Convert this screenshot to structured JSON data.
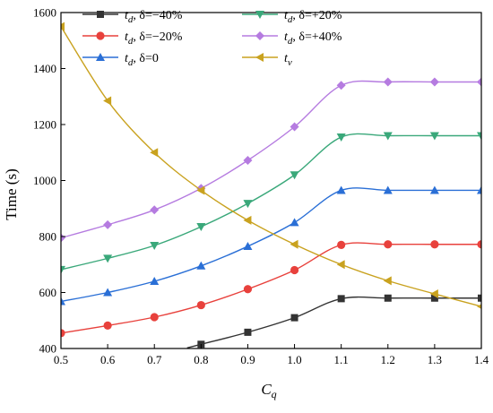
{
  "chart_data": {
    "type": "line",
    "title": "",
    "xlabel": "C",
    "xlabel_sub": "q",
    "ylabel": "Time (s)",
    "xlim": [
      0.5,
      1.4
    ],
    "ylim": [
      400,
      1600
    ],
    "x_ticks": [
      0.5,
      0.6,
      0.7,
      0.8,
      0.9,
      1.0,
      1.1,
      1.2,
      1.3,
      1.4
    ],
    "x_tick_labels": [
      "0.5",
      "0.6",
      "0.7",
      "0.8",
      "0.9",
      "1.0",
      "1.1",
      "1.2",
      "1.3",
      "1.4"
    ],
    "y_ticks": [
      400,
      600,
      800,
      1000,
      1200,
      1400,
      1600
    ],
    "y_tick_labels": [
      "400",
      "600",
      "800",
      "1000",
      "1200",
      "1400",
      "1600"
    ],
    "grid": false,
    "legend_position": "top",
    "x": [
      0.5,
      0.6,
      0.7,
      0.8,
      0.9,
      1.0,
      1.1,
      1.2,
      1.3,
      1.4
    ],
    "series": [
      {
        "name": "t_d, δ=−40%",
        "legend_main": "t",
        "legend_sub": "d",
        "legend_suffix": ", δ=−40%",
        "color": "#333333",
        "marker": "square",
        "x": [
          0.8,
          0.9,
          1.0,
          1.1,
          1.2,
          1.3,
          1.4
        ],
        "values": [
          415,
          458,
          510,
          578,
          580,
          580,
          580
        ],
        "line_from": 0.77
      },
      {
        "name": "t_d, δ=−20%",
        "legend_main": "t",
        "legend_sub": "d",
        "legend_suffix": ", δ=−20%",
        "color": "#e8413c",
        "marker": "circle",
        "x": [
          0.5,
          0.6,
          0.7,
          0.8,
          0.9,
          1.0,
          1.1,
          1.2,
          1.3,
          1.4
        ],
        "values": [
          455,
          482,
          512,
          555,
          612,
          680,
          770,
          772,
          772,
          772
        ]
      },
      {
        "name": "t_d, δ=0",
        "legend_main": "t",
        "legend_sub": "d",
        "legend_suffix": ", δ=0",
        "color": "#2a6fd6",
        "marker": "triangle-up",
        "x": [
          0.5,
          0.6,
          0.7,
          0.8,
          0.9,
          1.0,
          1.1,
          1.2,
          1.3,
          1.4
        ],
        "values": [
          568,
          600,
          640,
          695,
          765,
          850,
          965,
          965,
          965,
          965
        ]
      },
      {
        "name": "t_d, δ=+20%",
        "legend_main": "t",
        "legend_sub": "d",
        "legend_suffix": ", δ=+20%",
        "color": "#3aa87a",
        "marker": "triangle-down",
        "x": [
          0.5,
          0.6,
          0.7,
          0.8,
          0.9,
          1.0,
          1.1,
          1.2,
          1.3,
          1.4
        ],
        "values": [
          682,
          722,
          768,
          835,
          918,
          1020,
          1155,
          1160,
          1160,
          1160
        ]
      },
      {
        "name": "t_d, δ=+40%",
        "legend_main": "t",
        "legend_sub": "d",
        "legend_suffix": ", δ=+40%",
        "color": "#b57be0",
        "marker": "diamond",
        "x": [
          0.5,
          0.6,
          0.7,
          0.8,
          0.9,
          1.0,
          1.1,
          1.2,
          1.3,
          1.4
        ],
        "values": [
          795,
          842,
          895,
          972,
          1072,
          1192,
          1340,
          1352,
          1352,
          1352
        ]
      },
      {
        "name": "t_v",
        "legend_main": "t",
        "legend_sub": "v",
        "legend_suffix": "",
        "color": "#c9a21f",
        "marker": "triangle-left",
        "x": [
          0.5,
          0.6,
          0.7,
          0.8,
          0.9,
          1.0,
          1.1,
          1.2,
          1.3,
          1.4
        ],
        "values": [
          1550,
          1285,
          1100,
          965,
          858,
          772,
          700,
          642,
          595,
          550
        ]
      }
    ]
  }
}
